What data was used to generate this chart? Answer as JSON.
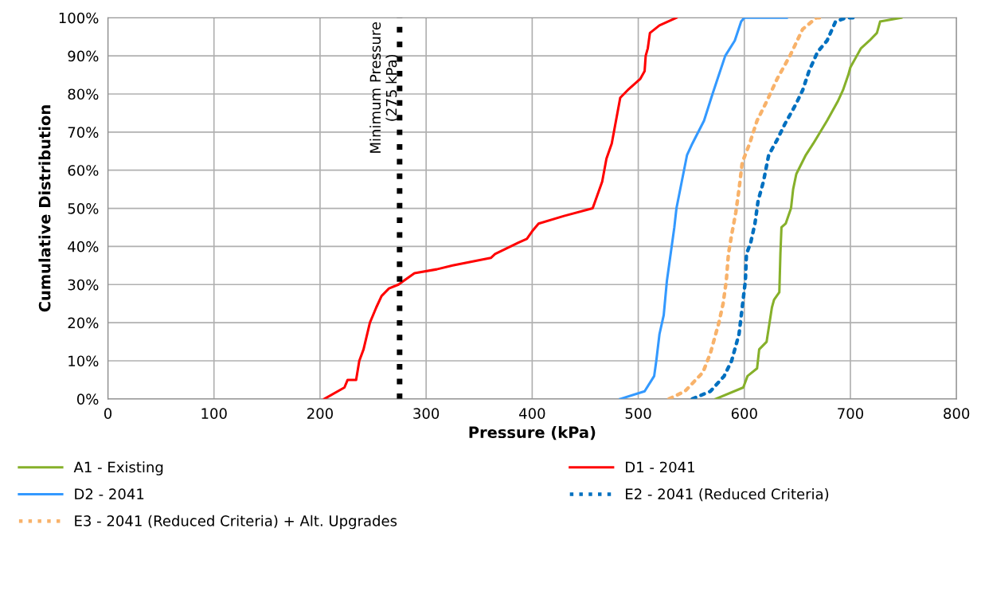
{
  "chart_data": {
    "type": "line",
    "xlabel": "Pressure (kPa)",
    "ylabel": "Cumulative Distribution",
    "xlim": [
      0,
      800
    ],
    "xticks": [
      0,
      100,
      200,
      300,
      400,
      500,
      600,
      700,
      800
    ],
    "ylim": [
      0,
      100
    ],
    "yticks": [
      {
        "value": 0,
        "label": "0%"
      },
      {
        "value": 10,
        "label": "10%"
      },
      {
        "value": 20,
        "label": "20%"
      },
      {
        "value": 30,
        "label": "30%"
      },
      {
        "value": 40,
        "label": "40%"
      },
      {
        "value": 50,
        "label": "50%"
      },
      {
        "value": 60,
        "label": "60%"
      },
      {
        "value": 70,
        "label": "70%"
      },
      {
        "value": 80,
        "label": "80%"
      },
      {
        "value": 90,
        "label": "90%"
      },
      {
        "value": 100,
        "label": "100%"
      }
    ],
    "grid": true,
    "legend": "bottom",
    "marker": "none",
    "ref_lines": [
      {
        "axis": "x",
        "value": 275,
        "label": "Minimum Pressure\n(275 kPa)",
        "color": "#000000",
        "line_style": "dotted"
      }
    ],
    "series": [
      {
        "name": "A1 - Existing",
        "color": "#86b02a",
        "line_style": "solid",
        "x": [
          573,
          599,
          603,
          612,
          614,
          621,
          626,
          628,
          633,
          634,
          635,
          639,
          644,
          646,
          649,
          658,
          665,
          678,
          688,
          693,
          698,
          700,
          706,
          710,
          718,
          725,
          728,
          748
        ],
        "values": [
          0,
          3,
          6,
          8,
          13,
          15,
          24,
          26,
          28,
          38,
          45,
          46,
          50,
          55,
          59,
          64,
          67,
          73,
          78,
          81,
          85,
          87,
          90,
          92,
          94,
          96,
          99,
          100
        ]
      },
      {
        "name": "D1 - 2041",
        "color": "#ff0000",
        "line_style": "solid",
        "x": [
          204,
          223,
          226,
          234,
          237,
          241,
          247,
          253,
          258,
          265,
          274,
          289,
          310,
          325,
          361,
          365,
          387,
          395,
          400,
          406,
          430,
          457,
          466,
          470,
          475,
          479,
          483,
          490,
          502,
          506,
          507,
          509,
          511,
          520,
          536
        ],
        "values": [
          0,
          3,
          5,
          5,
          10,
          13,
          20,
          24,
          27,
          29,
          30,
          33,
          34,
          35,
          37,
          38,
          41,
          42,
          44,
          46,
          48,
          50,
          57,
          63,
          67,
          73,
          79,
          81,
          84,
          86,
          90,
          92,
          96,
          98,
          100
        ]
      },
      {
        "name": "D2 - 2041",
        "color": "#3399ff",
        "line_style": "solid",
        "x": [
          483,
          506,
          515,
          517,
          520,
          524,
          527,
          531,
          534,
          536,
          541,
          546,
          551,
          562,
          570,
          576,
          582,
          591,
          597,
          600,
          640
        ],
        "values": [
          0,
          2,
          6,
          10,
          17,
          22,
          31,
          39,
          45,
          50,
          57,
          64,
          67,
          73,
          80,
          85,
          90,
          94,
          99,
          100,
          100
        ]
      },
      {
        "name": "E2 - 2041 (Reduced Criteria)",
        "color": "#0070c0",
        "line_style": "dotted",
        "x": [
          551,
          568,
          581,
          588,
          595,
          598,
          601,
          602,
          606,
          610,
          613,
          618,
          623,
          631,
          638,
          648,
          655,
          661,
          669,
          678,
          686,
          696,
          706
        ],
        "values": [
          0,
          2,
          6,
          10,
          17,
          24,
          31,
          38,
          41,
          46,
          52,
          57,
          64,
          68,
          72,
          77,
          81,
          86,
          91,
          94,
          99,
          100,
          100
        ]
      },
      {
        "name": "E3 - 2041 (Reduced Criteria) + Alt. Upgrades",
        "color": "#f8b26a",
        "line_style": "dotted",
        "x": [
          529,
          544,
          561,
          568,
          576,
          580,
          583,
          585,
          588,
          592,
          595,
          598,
          605,
          612,
          621,
          631,
          643,
          655,
          668,
          676
        ],
        "values": [
          0,
          2,
          7,
          12,
          20,
          25,
          31,
          38,
          43,
          49,
          55,
          62,
          67,
          73,
          78,
          84,
          90,
          97,
          100,
          100
        ]
      }
    ]
  }
}
